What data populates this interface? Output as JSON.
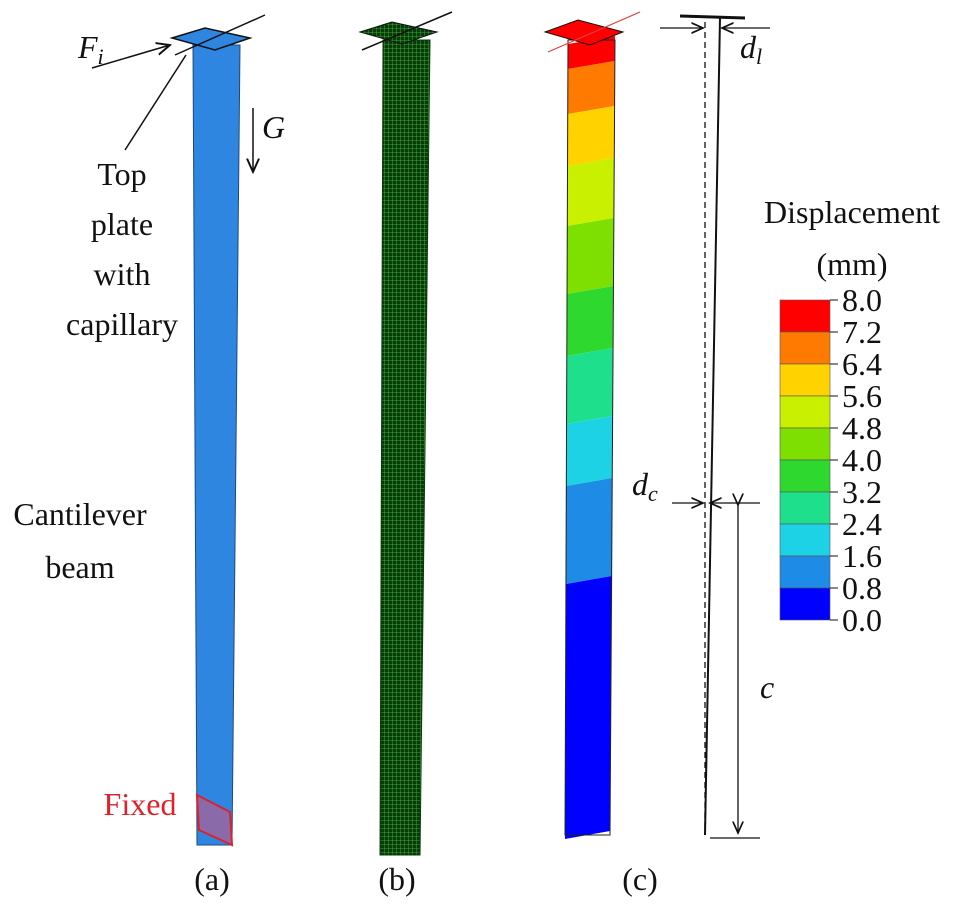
{
  "panel_a": {
    "force_label": "F",
    "force_sub": "i",
    "gravity_label": "G",
    "top_plate_label": [
      "Top",
      "plate",
      "with",
      "capillary"
    ],
    "beam_label": [
      "Cantilever",
      "beam"
    ],
    "fixed_label": "Fixed",
    "caption": "(a)"
  },
  "panel_b": {
    "caption": "(b)"
  },
  "panel_c": {
    "legend_title": [
      "Displacement",
      "(mm)"
    ],
    "legend_ticks": [
      "8.0",
      "7.2",
      "6.4",
      "5.6",
      "4.8",
      "4.0",
      "3.2",
      "2.4",
      "1.6",
      "0.8",
      "0.0"
    ],
    "colormap": [
      "#ff0000",
      "#ff7a00",
      "#ffd200",
      "#c8f000",
      "#7ee000",
      "#2ed82e",
      "#1ee08c",
      "#1ed2e6",
      "#1e8ce6",
      "#0000ff"
    ],
    "tip_label": "d",
    "tip_sub": "l",
    "capillary_label": "d",
    "capillary_sub": "c",
    "length_label": "c",
    "caption": "(c)"
  }
}
